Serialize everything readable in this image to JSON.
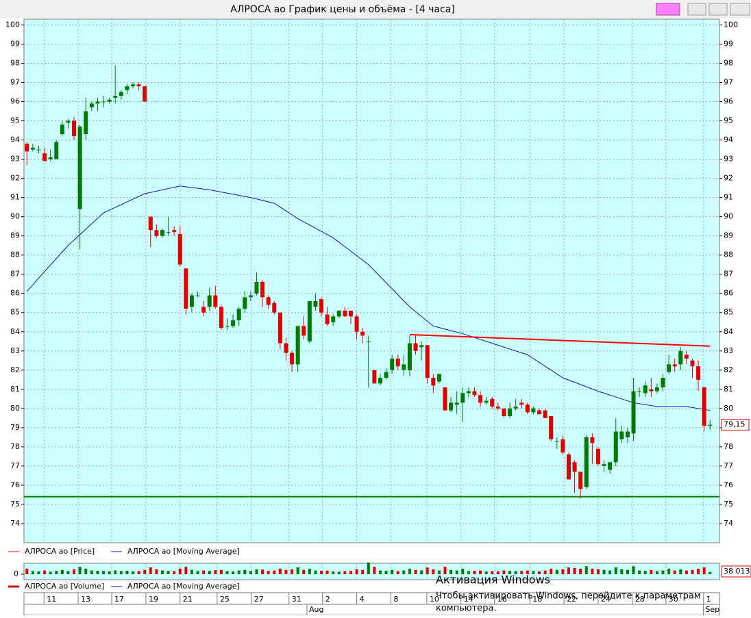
{
  "chart_data": {
    "type": "candlestick",
    "title": "АЛРОСА ао График цены и объёма - [4 часа]",
    "open": [
      93.8,
      93.5,
      93.5,
      93.3,
      93.0,
      93.0,
      94.3,
      94.9,
      95.0,
      90.4,
      94.3,
      95.7,
      95.9,
      96.0,
      96.0,
      96.2,
      96.3,
      96.6,
      96.8,
      96.9,
      96.8,
      90.0,
      89.3,
      89.0,
      89.2,
      89.3,
      89.1,
      87.3,
      85.3,
      85.9,
      85.3,
      85.3,
      85.9,
      85.3,
      84.3,
      84.3,
      84.6,
      85.2,
      85.8,
      86.0,
      86.6,
      85.8,
      85.5,
      85.0,
      83.4,
      82.9,
      82.3,
      84.3,
      83.5,
      85.3,
      85.7,
      84.9,
      84.5,
      84.8,
      85.1,
      85.1,
      84.8,
      84.0,
      83.5,
      82.0,
      81.3,
      81.6,
      82.0,
      82.6,
      82.0,
      82.0,
      83.4,
      83.2,
      83.3,
      81.6,
      81.4,
      81.1,
      79.9,
      80.2,
      80.3,
      80.8,
      80.9,
      80.7,
      80.3,
      80.5,
      80.1,
      80.0,
      79.6,
      80.0,
      80.3,
      80.2,
      79.8,
      79.9,
      79.9,
      79.6,
      78.3,
      78.4,
      77.6,
      77.2,
      76.7,
      75.9,
      78.5,
      77.9,
      77.0,
      76.8,
      77.2,
      78.4,
      78.5,
      78.7,
      80.9,
      80.8,
      81.0,
      80.9,
      81.1,
      81.9,
      82.3,
      82.3,
      82.8,
      82.5,
      82.2,
      81.1,
      79.1
    ],
    "high": [
      93.9,
      93.8,
      93.7,
      93.6,
      93.5,
      94.0,
      95.0,
      95.1,
      95.2,
      94.8,
      96.2,
      96.0,
      96.2,
      96.3,
      96.2,
      97.9,
      96.6,
      96.9,
      97.0,
      97.0,
      96.8,
      90.0,
      89.6,
      89.4,
      90.0,
      89.5,
      89.5,
      87.3,
      86.0,
      86.1,
      85.6,
      86.3,
      86.4,
      85.4,
      84.7,
      84.9,
      85.3,
      86.1,
      86.1,
      87.1,
      86.7,
      85.9,
      85.6,
      85.0,
      83.7,
      83.0,
      84.3,
      84.8,
      85.6,
      86.0,
      85.8,
      85.3,
      84.9,
      85.1,
      85.3,
      85.1,
      84.9,
      84.2,
      83.8,
      82.0,
      81.8,
      82.1,
      82.8,
      82.8,
      82.8,
      83.8,
      83.8,
      83.5,
      83.3,
      81.8,
      81.8,
      81.1,
      80.6,
      80.9,
      81.1,
      81.1,
      81.1,
      80.9,
      80.6,
      80.6,
      80.3,
      80.0,
      80.3,
      80.5,
      80.5,
      80.3,
      80.1,
      80.0,
      80.0,
      79.6,
      78.5,
      78.6,
      77.7,
      77.3,
      76.7,
      78.6,
      78.7,
      78.0,
      77.3,
      77.2,
      79.5,
      79.1,
      79.0,
      81.6,
      81.1,
      81.4,
      81.6,
      81.3,
      81.8,
      82.8,
      82.6,
      83.2,
      83.0,
      82.6,
      82.5,
      81.1,
      79.4
    ],
    "low": [
      92.7,
      93.4,
      93.3,
      92.9,
      92.9,
      93.0,
      94.2,
      94.6,
      94.0,
      88.3,
      94.0,
      95.5,
      95.5,
      95.7,
      95.9,
      95.9,
      96.1,
      96.4,
      96.7,
      96.6,
      96.0,
      88.4,
      88.9,
      88.9,
      89.0,
      89.0,
      87.4,
      84.9,
      85.0,
      85.8,
      84.8,
      85.1,
      85.2,
      84.1,
      84.1,
      84.2,
      84.3,
      85.0,
      85.6,
      85.9,
      85.3,
      85.2,
      84.9,
      83.1,
      82.5,
      81.9,
      81.9,
      83.6,
      83.4,
      85.1,
      84.8,
      84.3,
      84.3,
      84.7,
      84.8,
      84.4,
      83.6,
      83.4,
      81.1,
      81.3,
      81.2,
      81.5,
      81.8,
      82.0,
      81.7,
      81.7,
      82.8,
      82.5,
      81.3,
      80.8,
      81.3,
      79.9,
      79.8,
      79.7,
      79.3,
      80.6,
      80.6,
      80.1,
      80.2,
      80.0,
      79.9,
      79.5,
      79.5,
      79.9,
      80.0,
      79.7,
      79.7,
      79.7,
      79.5,
      78.3,
      77.9,
      77.6,
      76.3,
      75.6,
      75.3,
      75.8,
      77.1,
      77.0,
      76.7,
      76.6,
      77.0,
      78.2,
      78.2,
      78.3,
      80.6,
      80.6,
      80.6,
      80.8,
      80.9,
      81.8,
      81.9,
      82.0,
      82.3,
      81.6,
      80.9,
      78.8,
      78.9
    ],
    "close": [
      93.4,
      93.6,
      93.5,
      92.9,
      93.1,
      93.9,
      94.8,
      95.0,
      94.2,
      94.7,
      95.5,
      95.9,
      96.0,
      96.0,
      96.1,
      96.3,
      96.5,
      96.8,
      96.9,
      96.8,
      96.0,
      89.3,
      89.0,
      89.3,
      89.2,
      89.2,
      87.5,
      85.2,
      85.9,
      85.9,
      85.0,
      85.9,
      85.3,
      84.2,
      84.3,
      84.6,
      85.2,
      85.8,
      85.9,
      86.6,
      85.8,
      85.4,
      85.0,
      83.4,
      82.9,
      82.3,
      84.3,
      83.8,
      85.6,
      85.6,
      85.0,
      84.4,
      84.8,
      85.1,
      84.8,
      84.8,
      84.0,
      83.8,
      83.5,
      81.3,
      81.6,
      81.9,
      82.6,
      82.2,
      82.3,
      83.4,
      83.0,
      83.3,
      81.6,
      81.2,
      81.8,
      79.9,
      80.3,
      80.3,
      80.8,
      80.9,
      80.7,
      80.3,
      80.4,
      80.1,
      80.0,
      79.6,
      80.0,
      80.1,
      80.2,
      79.8,
      80.0,
      79.7,
      79.5,
      78.4,
      78.3,
      77.7,
      76.3,
      76.7,
      75.8,
      78.5,
      78.2,
      77.1,
      77.1,
      77.2,
      78.8,
      78.8,
      78.8,
      80.9,
      80.9,
      81.2,
      80.9,
      81.1,
      81.6,
      82.3,
      82.2,
      83.0,
      82.6,
      82.2,
      81.5,
      79.1,
      79.15
    ],
    "last_label": "79,15",
    "up_color": "#007a00",
    "down_color": "#e00000",
    "ylim": [
      73,
      100.3
    ],
    "yticks": [
      74,
      75,
      76,
      77,
      78,
      79,
      80,
      81,
      82,
      83,
      84,
      85,
      86,
      87,
      88,
      89,
      90,
      91,
      92,
      93,
      94,
      95,
      96,
      97,
      98,
      99,
      100
    ],
    "xlim": [
      -0.5,
      117.6
    ],
    "grid": true,
    "moving_average": {
      "name": "АЛРОСА ао [Moving Average]",
      "color": "#1010c0",
      "x": [
        0,
        2,
        7,
        13,
        20,
        26,
        31,
        38,
        42,
        46,
        52,
        58,
        65,
        69,
        74,
        80,
        85,
        91,
        97,
        103,
        107,
        112,
        116
      ],
      "values": [
        86.1,
        86.8,
        88.5,
        90.2,
        91.2,
        91.6,
        91.4,
        91.0,
        90.7,
        89.9,
        88.9,
        87.5,
        85.3,
        84.3,
        83.9,
        83.3,
        82.8,
        81.6,
        80.9,
        80.3,
        80.1,
        80.1,
        79.9
      ]
    },
    "trend_lines": [
      {
        "color": "#ff0000",
        "x": [
          65,
          116
        ],
        "values": [
          83.85,
          83.25
        ]
      },
      {
        "color": "#008000",
        "x": [
          -0.5,
          117.6
        ],
        "values": [
          75.4,
          75.4
        ]
      }
    ],
    "legend_price": [
      "АЛРОСА ао [Price]",
      "АЛРОСА ао [Moving Average]"
    ],
    "volume": {
      "legend": [
        "АЛРОСА ао [Volume]",
        "АЛРОСА ао [Moving Average]"
      ],
      "values": [
        90000,
        50000,
        45000,
        60000,
        40000,
        55000,
        70000,
        50000,
        80000,
        120000,
        90000,
        60000,
        55000,
        50000,
        45000,
        60000,
        50000,
        55000,
        45000,
        50000,
        70000,
        110000,
        80000,
        60000,
        55000,
        50000,
        90000,
        120000,
        70000,
        50000,
        60000,
        55000,
        65000,
        70000,
        50000,
        45000,
        60000,
        70000,
        50000,
        80000,
        75000,
        55000,
        60000,
        90000,
        70000,
        80000,
        110000,
        70000,
        90000,
        60000,
        55000,
        60000,
        45000,
        40000,
        50000,
        55000,
        80000,
        70000,
        190000,
        120000,
        60000,
        55000,
        70000,
        50000,
        60000,
        90000,
        70000,
        60000,
        110000,
        80000,
        60000,
        120000,
        70000,
        60000,
        90000,
        50000,
        55000,
        60000,
        45000,
        50000,
        45000,
        60000,
        55000,
        50000,
        55000,
        60000,
        50000,
        45000,
        60000,
        90000,
        70000,
        80000,
        110000,
        100000,
        90000,
        130000,
        90000,
        80000,
        70000,
        60000,
        110000,
        80000,
        70000,
        130000,
        60000,
        55000,
        70000,
        50000,
        60000,
        90000,
        60000,
        80000,
        60000,
        70000,
        90000,
        110000,
        38013
      ],
      "last_label": "38 013",
      "color": "#e00000",
      "ylim": [
        0,
        200000
      ],
      "yticks": [
        0
      ]
    },
    "x_labels": [
      {
        "value": 2.9,
        "label": "11"
      },
      {
        "value": 8.7,
        "label": "13"
      },
      {
        "value": 14.4,
        "label": "17"
      },
      {
        "value": 20.2,
        "label": "19"
      },
      {
        "value": 26,
        "label": "21"
      },
      {
        "value": 32.3,
        "label": "25"
      },
      {
        "value": 38.1,
        "label": "27"
      },
      {
        "value": 44.5,
        "label": "31"
      },
      {
        "value": 50.2,
        "label": "2"
      },
      {
        "value": 56,
        "label": "4"
      },
      {
        "value": 61.8,
        "label": "8"
      },
      {
        "value": 67.9,
        "label": "10"
      },
      {
        "value": 73.7,
        "label": "14"
      },
      {
        "value": 79.4,
        "label": "16"
      },
      {
        "value": 85.4,
        "label": "18"
      },
      {
        "value": 91.2,
        "label": "22"
      },
      {
        "value": 97,
        "label": "24"
      },
      {
        "value": 102.8,
        "label": "28"
      },
      {
        "value": 108.5,
        "label": "30"
      },
      {
        "value": 114.9,
        "label": "1"
      }
    ],
    "month_labels": [
      {
        "value": 47.9,
        "label": "Aug"
      },
      {
        "value": 115.2,
        "label": "Sep"
      }
    ]
  },
  "watermark": [
    "Активация Windows",
    "Чтобы активировать Windows, перейдите к параметрам",
    "компьютера."
  ]
}
